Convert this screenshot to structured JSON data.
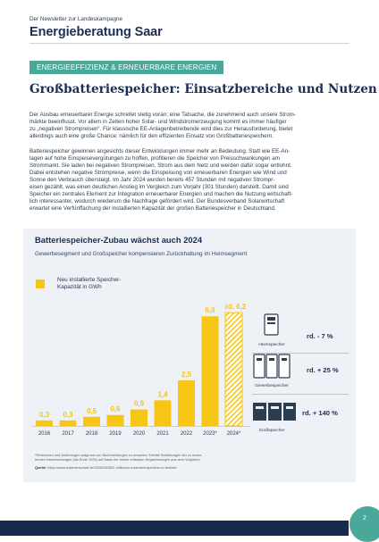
{
  "header": {
    "kicker": "Der Newsletter zur Landeskampagne",
    "brand": "Energieberatung Saar"
  },
  "section_tag": "ENERGIEEFFIZIENZ & ERNEUERBARE ENERGIEN",
  "headline": "Großbatteriespeicher: Einsatzbereiche und Nutzen",
  "paragraphs": {
    "p1": [
      "Der Ausbau erneuerbarer Energie schreitet stetig voran; eine Tatsache, die zunehmend auch unsere Strom-",
      "märkte beeinflusst. Vor allem in Zeiten hoher Solar- und Windstromerzeugung kommt es immer häufiger",
      "zu „negativen Strompreisen“. Für klassische EE-Anlagenbetreibende wird dies zur Herausforderung, bietet",
      "allerdings auch eine große Chance: nämlich für den effizienten Einsatz von Großbatteriespeichern."
    ],
    "p2": [
      "Batteriespeicher gewinnen angesichts dieser Entwicklungen immer mehr an Bedeutung. Statt wie EE-An-",
      "lagen auf hohe Einspeisevergütungen zu hoffen, profitieren die Speicher von Preisschwankungen am",
      "Strommarkt. Sie laden bei negativen Strompreisen, Strom aus dem Netz und werden dafür sogar entlohnt.",
      "Dabei entstehen negative Strompreise, wenn die Einspeisung von erneuerbaren Energien wie Wind und",
      "Sonne den Verbrauch übersteigt. Im Jahr 2024 wurden bereits 457 Stunden mit negativen Strompr-",
      "eisen gezählt, was einen deutlichen Anstieg im Vergleich zum Vorjahr (301 Stunden) darstellt. Damit sind",
      "Speicher ein zentrales Element zur Integration erneuerbarer Energien und machen die Nutzung wirtschaft-",
      "lich interessanter, wodurch wiederum die Nachfrage gefördert wird. Der Bundesverband Solarwirtschaft",
      "erwartet eine Verfünffachung der installierten Kapazität der großen Batteriespeicher in Deutschland."
    ]
  },
  "chart_data": {
    "type": "bar",
    "title": "Batteriespeicher-Zubau wächst auch 2024",
    "subtitle": "Gewerbesegment und Großspeicher kompensieren Zurückhaltung im Heimsegment",
    "categories": [
      "2016",
      "2017",
      "2018",
      "2019",
      "2020",
      "2021",
      "2022",
      "2023*",
      "2024*"
    ],
    "values": [
      0.3,
      0.3,
      0.5,
      0.6,
      0.9,
      1.4,
      2.5,
      6.0,
      6.2
    ],
    "value_labels": [
      "0,3",
      "0,3",
      "0,5",
      "0,6",
      "0,9",
      "1,4",
      "2,5",
      "6,0",
      "rd. 6,2"
    ],
    "series": [
      {
        "name": "Neu installierte Speicher-Kapazität in GWh",
        "values": [
          0.3,
          0.3,
          0.5,
          0.6,
          0.9,
          1.4,
          2.5,
          6.0,
          6.2
        ]
      }
    ],
    "legend": {
      "lines": [
        "Neu installierte Speicher-",
        "Kapazität in GWh"
      ],
      "placement": "top-left"
    },
    "last_bar_style": "hatched",
    "ylim": [
      0,
      6.5
    ],
    "grid": false,
    "bar_color": "#f6c515"
  },
  "segments": [
    {
      "label": "Heimspeicher",
      "change": "rd. - 7 %",
      "icon": "home-battery-icon"
    },
    {
      "label": "Gewerbespeicher",
      "change": "rd. + 25 %",
      "icon": "commercial-battery-icon"
    },
    {
      "label": "Großspeicher",
      "change": "rd. + 140 %",
      "icon": "grid-battery-icon"
    }
  ],
  "footnote": [
    "*Revisionen und Änderungen aufgrund von Nachmeldungen zu erwarten; Enthält Schätzungen der zu erwar-",
    "tenden Nachmeldungen (bis Ende 2025) auf Basis der bisher erfassten Registrierungen aus dem Vorjahren."
  ],
  "source": {
    "label": "Quelle:",
    "url": "https://www.solarwirtschaft.de/2025/05/06/2-millionen-solarstromspeicher-in-betrieb/"
  },
  "page_number": "2",
  "colors": {
    "navy": "#1a2f55",
    "teal": "#4aa89a",
    "yellow": "#f6c515",
    "panel": "#eef1f6"
  }
}
